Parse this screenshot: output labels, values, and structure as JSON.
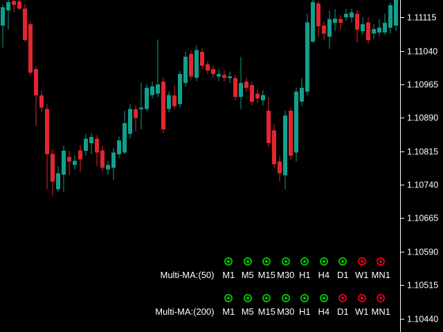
{
  "window": {
    "background": "#000000"
  },
  "chart": {
    "bull_color": "#11a08d",
    "bear_color": "#e3262e",
    "axis_color": "#ffffff",
    "axis_text_color": "#ffffff"
  },
  "chart_data": {
    "type": "candlestick",
    "ohlc_order": [
      "open",
      "high",
      "low",
      "close"
    ],
    "ylim": [
      1.1041,
      1.11154
    ],
    "grid": false,
    "y_axis": {
      "side": "right",
      "ticks": [
        "1.11115",
        "1.11040",
        "1.10965",
        "1.10890",
        "1.10815",
        "1.10740",
        "1.10665",
        "1.10590",
        "1.10515",
        "1.10440"
      ]
    },
    "candles": [
      [
        1.11097,
        1.11145,
        1.11048,
        1.11138
      ],
      [
        1.11131,
        1.11154,
        1.11087,
        1.11149
      ],
      [
        1.11152,
        1.11154,
        1.11126,
        1.11143
      ],
      [
        1.11151,
        1.11154,
        1.11131,
        1.11135
      ],
      [
        1.11135,
        1.11145,
        1.11061,
        1.11064
      ],
      [
        1.111,
        1.11107,
        1.10986,
        1.10991
      ],
      [
        1.10999,
        1.11005,
        1.10871,
        1.1094
      ],
      [
        1.1094,
        1.10952,
        1.10902,
        1.10913
      ],
      [
        1.1091,
        1.10921,
        1.1073,
        1.10808
      ],
      [
        1.10809,
        1.1082,
        1.10716,
        1.10747
      ],
      [
        1.1073,
        1.10781,
        1.10724,
        1.10766
      ],
      [
        1.10763,
        1.10828,
        1.10724,
        1.10816
      ],
      [
        1.10802,
        1.10816,
        1.10761,
        1.10792
      ],
      [
        1.10784,
        1.10805,
        1.10774,
        1.10794
      ],
      [
        1.10817,
        1.10828,
        1.10769,
        1.10797
      ],
      [
        1.10816,
        1.10854,
        1.10805,
        1.10843
      ],
      [
        1.10833,
        1.10856,
        1.10808,
        1.10847
      ],
      [
        1.10843,
        1.10851,
        1.10781,
        1.10812
      ],
      [
        1.10817,
        1.10828,
        1.1077,
        1.10778
      ],
      [
        1.10774,
        1.10794,
        1.10763,
        1.10784
      ],
      [
        1.10778,
        1.10822,
        1.1075,
        1.10812
      ],
      [
        1.10808,
        1.10848,
        1.108,
        1.10839
      ],
      [
        1.10812,
        1.10906,
        1.10808,
        1.10878
      ],
      [
        1.10854,
        1.10921,
        1.10843,
        1.1091
      ],
      [
        1.10909,
        1.10918,
        1.10859,
        1.1089
      ],
      [
        1.10909,
        1.10968,
        1.10864,
        1.10913
      ],
      [
        1.1091,
        1.10965,
        1.10906,
        1.10957
      ],
      [
        1.10941,
        1.10971,
        1.10933,
        1.1096
      ],
      [
        1.10944,
        1.11066,
        1.10937,
        1.10965
      ],
      [
        1.10971,
        1.1098,
        1.10856,
        1.10864
      ],
      [
        1.1091,
        1.10949,
        1.10902,
        1.10941
      ],
      [
        1.1094,
        1.10963,
        1.10909,
        1.10916
      ],
      [
        1.10921,
        1.10994,
        1.10913,
        1.10988
      ],
      [
        1.10968,
        1.11038,
        1.1096,
        1.11027
      ],
      [
        1.11033,
        1.11042,
        1.10975,
        1.10983
      ],
      [
        1.1098,
        1.11052,
        1.10972,
        1.11042
      ],
      [
        1.11038,
        1.11045,
        1.10999,
        1.11007
      ],
      [
        1.1101,
        1.11017,
        1.10988,
        1.10996
      ],
      [
        1.10999,
        1.11007,
        1.1098,
        1.10988
      ],
      [
        1.10983,
        1.10999,
        1.10972,
        1.10988
      ],
      [
        1.10986,
        1.10996,
        1.10971,
        1.1098
      ],
      [
        1.10979,
        1.10993,
        1.10968,
        1.10983
      ],
      [
        1.10979,
        1.10986,
        1.10929,
        1.10937
      ],
      [
        1.10937,
        1.11027,
        1.1091,
        1.10968
      ],
      [
        1.10971,
        1.1098,
        1.10949,
        1.10957
      ],
      [
        1.10963,
        1.10972,
        1.10918,
        1.10926
      ],
      [
        1.10944,
        1.10955,
        1.10924,
        1.10933
      ],
      [
        1.10929,
        1.10952,
        1.10918,
        1.10941
      ],
      [
        1.10906,
        1.10937,
        1.10825,
        1.10833
      ],
      [
        1.10862,
        1.10875,
        1.10778,
        1.10786
      ],
      [
        1.10792,
        1.10805,
        1.10747,
        1.10766
      ],
      [
        1.10761,
        1.10906,
        1.1073,
        1.10895
      ],
      [
        1.10906,
        1.10913,
        1.10797,
        1.10805
      ],
      [
        1.10812,
        1.10958,
        1.10792,
        1.10949
      ],
      [
        1.10926,
        1.10979,
        1.10916,
        1.10957
      ],
      [
        1.10949,
        1.11123,
        1.10941,
        1.11104
      ],
      [
        1.11061,
        1.11154,
        1.11058,
        1.11149
      ],
      [
        1.11146,
        1.11151,
        1.11072,
        1.11095
      ],
      [
        1.11097,
        1.11107,
        1.11064,
        1.11079
      ],
      [
        1.11072,
        1.11131,
        1.11045,
        1.11111
      ],
      [
        1.11103,
        1.11134,
        1.11084,
        1.11112
      ],
      [
        1.11111,
        1.1112,
        1.11087,
        1.11103
      ],
      [
        1.11115,
        1.11134,
        1.11107,
        1.11123
      ],
      [
        1.11115,
        1.11135,
        1.11104,
        1.11126
      ],
      [
        1.11123,
        1.11131,
        1.11058,
        1.11087
      ],
      [
        1.11084,
        1.11115,
        1.11076,
        1.111
      ],
      [
        1.11104,
        1.11115,
        1.11056,
        1.11064
      ],
      [
        1.11079,
        1.111,
        1.11066,
        1.11089
      ],
      [
        1.11081,
        1.11111,
        1.11073,
        1.11092
      ],
      [
        1.11081,
        1.11123,
        1.11076,
        1.11103
      ],
      [
        1.11092,
        1.11148,
        1.11079,
        1.11142
      ],
      [
        1.11097,
        1.11154,
        1.11084,
        1.11154
      ]
    ]
  },
  "indicator": {
    "up_color": "#00c300",
    "down_color": "#e1001e",
    "label_color": "#ffffff",
    "rows": [
      {
        "label": "Multi-MA:(50)",
        "signals": [
          {
            "tf": "M1",
            "state": "up"
          },
          {
            "tf": "M5",
            "state": "up"
          },
          {
            "tf": "M15",
            "state": "up"
          },
          {
            "tf": "M30",
            "state": "up"
          },
          {
            "tf": "H1",
            "state": "up"
          },
          {
            "tf": "H4",
            "state": "up"
          },
          {
            "tf": "D1",
            "state": "up"
          },
          {
            "tf": "W1",
            "state": "down"
          },
          {
            "tf": "MN1",
            "state": "down"
          }
        ]
      },
      {
        "label": "Multi-MA:(200)",
        "signals": [
          {
            "tf": "M1",
            "state": "up"
          },
          {
            "tf": "M5",
            "state": "up"
          },
          {
            "tf": "M15",
            "state": "up"
          },
          {
            "tf": "M30",
            "state": "up"
          },
          {
            "tf": "H1",
            "state": "up"
          },
          {
            "tf": "H4",
            "state": "up"
          },
          {
            "tf": "D1",
            "state": "down"
          },
          {
            "tf": "W1",
            "state": "down"
          },
          {
            "tf": "MN1",
            "state": "down"
          }
        ]
      }
    ]
  }
}
